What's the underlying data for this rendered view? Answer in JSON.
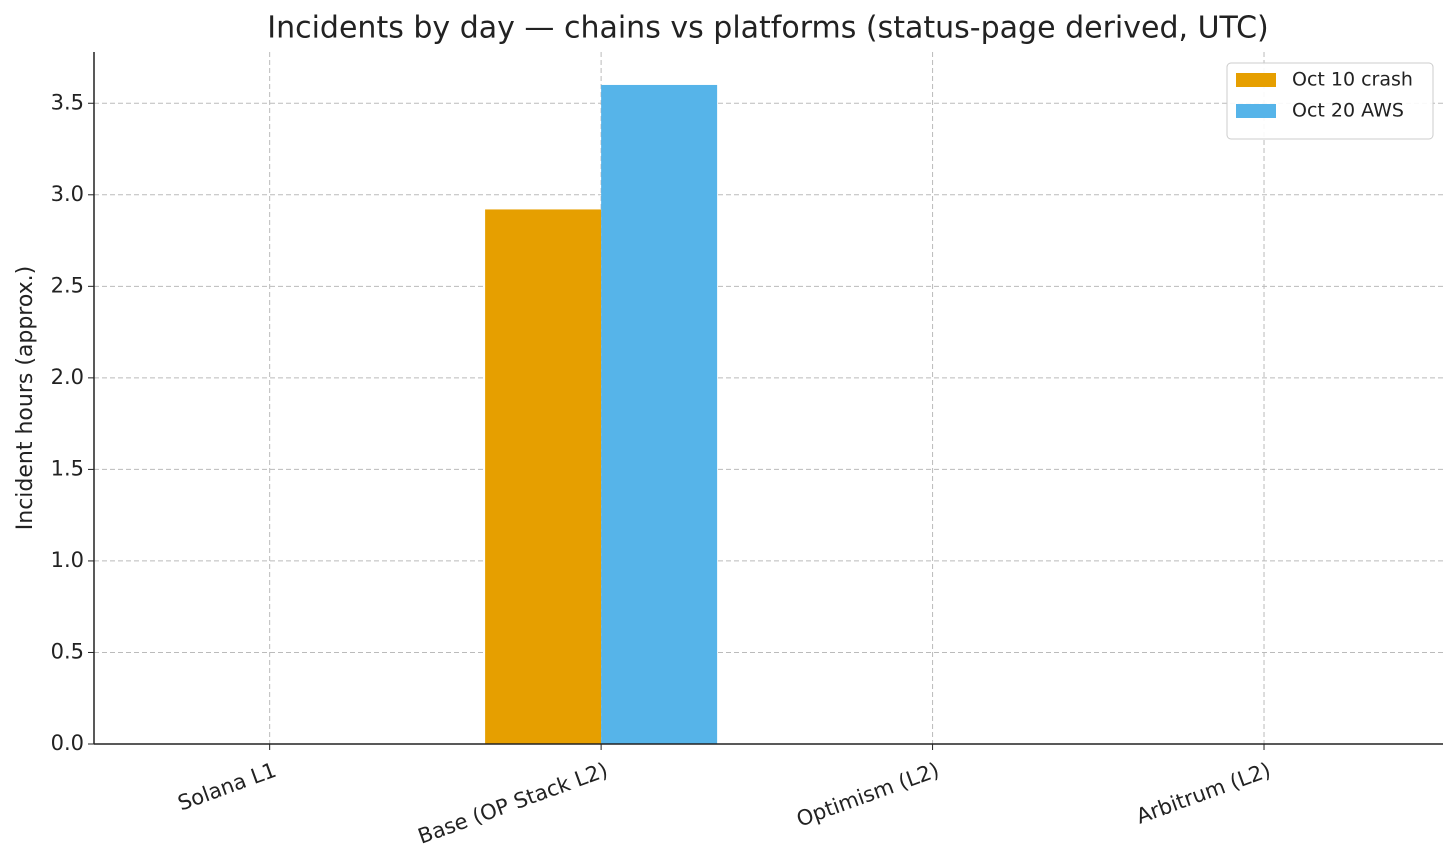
{
  "chart_data": {
    "type": "bar",
    "title": "Incidents by day — chains vs platforms (status-page derived, UTC)",
    "y_label": "Incident hours (approx.)",
    "categories": [
      "Solana L1",
      "Base (OP Stack L2)",
      "Optimism (L2)",
      "Arbitrum (L2)"
    ],
    "series": [
      {
        "name": "Oct 10 crash",
        "color": "#e69f00",
        "values": [
          0,
          2.92,
          0,
          0
        ]
      },
      {
        "name": "Oct 20 AWS",
        "color": "#56b4e9",
        "values": [
          0,
          3.6,
          0,
          0
        ]
      }
    ],
    "ylim": [
      0,
      3.78
    ],
    "yticks": [
      {
        "value": 0,
        "label": "0.0"
      },
      {
        "value": 0.5,
        "label": "0.5"
      },
      {
        "value": 1,
        "label": "1.0"
      },
      {
        "value": 1.5,
        "label": "1.5"
      },
      {
        "value": 2,
        "label": "2.0"
      },
      {
        "value": 2.5,
        "label": "2.5"
      },
      {
        "value": 3,
        "label": "3.0"
      },
      {
        "value": 3.5,
        "label": "3.5"
      }
    ],
    "grid": true,
    "legend": "upper right"
  }
}
